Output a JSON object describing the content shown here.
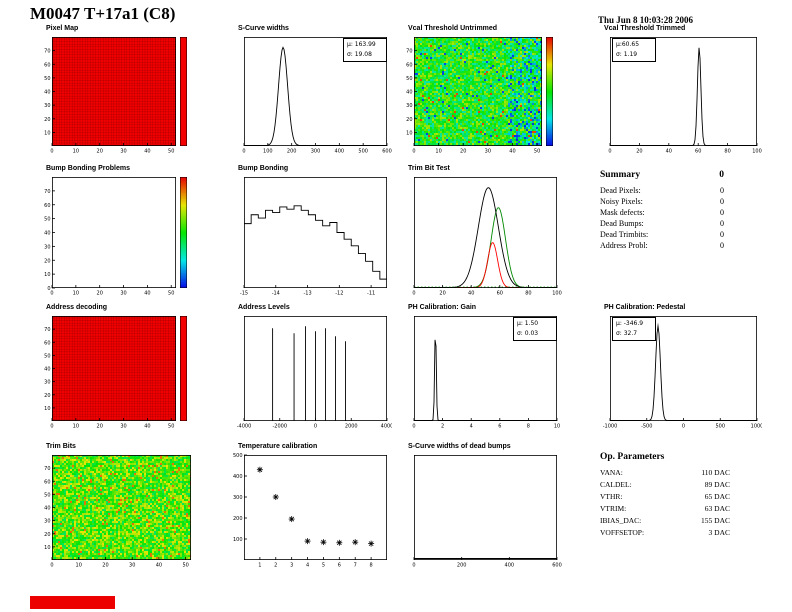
{
  "header": {
    "title": "M0047 T+17a1 (C8)",
    "date": "Thu Jun  8 10:03:28 2006"
  },
  "panels": {
    "pixel_map": "Pixel Map",
    "scurve_widths": "S-Curve widths",
    "vcal_untrimmed": "Vcal Threshold Untrimmed",
    "vcal_trimmed": "Vcal Threshold Trimmed",
    "bump_problems": "Bump Bonding Problems",
    "bump_bonding": "Bump Bonding",
    "trim_bit_test": "Trim Bit Test",
    "address_decoding": "Address decoding",
    "address_levels": "Address Levels",
    "ph_gain": "PH Calibration: Gain",
    "ph_pedestal": "PH Calibration: Pedestal",
    "trim_bits": "Trim Bits",
    "temp_calibration": "Temperature calibration",
    "dead_bumps": "S-Curve widths of dead bumps"
  },
  "stats": {
    "scurve": {
      "mu": "μ: 163.99",
      "sigma": "σ: 19.08"
    },
    "vcal_trimmed": {
      "mu": "μ:60.65",
      "sigma": "σ: 1.19"
    },
    "ph_gain": {
      "mu": "μ: 1.50",
      "sigma": "σ: 0.03"
    },
    "ph_pedestal": {
      "mu": "μ: -346.9",
      "sigma": "σ: 32.7"
    }
  },
  "summary": {
    "title": "Summary",
    "total": "0",
    "rows": [
      {
        "label": "Dead Pixels:",
        "value": "0"
      },
      {
        "label": "Noisy Pixels:",
        "value": "0"
      },
      {
        "label": "Mask defects:",
        "value": "0"
      },
      {
        "label": "Dead Bumps:",
        "value": "0"
      },
      {
        "label": "Dead Trimbits:",
        "value": "0"
      },
      {
        "label": "Address Probl:",
        "value": "0"
      }
    ]
  },
  "op_parameters": {
    "title": "Op. Parameters",
    "rows": [
      {
        "label": "VANA:",
        "value": "110 DAC"
      },
      {
        "label": "CALDEL:",
        "value": "89 DAC"
      },
      {
        "label": "VTHR:",
        "value": "65 DAC"
      },
      {
        "label": "VTRIM:",
        "value": "63 DAC"
      },
      {
        "label": "IBIAS_DAC:",
        "value": "155 DAC"
      },
      {
        "label": "VOFFSETOP:",
        "value": "3 DAC"
      }
    ]
  },
  "colors": {
    "map_red": "#f30000",
    "marker_green": "#00a000",
    "marker_red": "#ff0000",
    "status_red": "#ec0000"
  },
  "chart_data": [
    {
      "id": "pixel_map",
      "type": "heatmap",
      "style": "solid-red",
      "xlim": [
        0,
        52
      ],
      "ylim": [
        0,
        80
      ],
      "xticks": [
        0,
        10,
        20,
        30,
        40,
        50
      ],
      "yticks": [
        10,
        20,
        30,
        40,
        50,
        60,
        70
      ],
      "colorbar": "red"
    },
    {
      "id": "scurve_widths",
      "type": "hist-gauss",
      "mean": 163.99,
      "sigma": 19.08,
      "xlim": [
        0,
        600
      ],
      "xticks": [
        0,
        100,
        200,
        300,
        400,
        500,
        600
      ]
    },
    {
      "id": "vcal_untrimmed",
      "type": "heatmap",
      "style": "noise-rainbow",
      "xlim": [
        0,
        52
      ],
      "ylim": [
        0,
        80
      ],
      "xticks": [
        0,
        10,
        20,
        30,
        40,
        50
      ],
      "yticks": [
        10,
        20,
        30,
        40,
        50,
        60,
        70
      ],
      "colorbar": "rainbow"
    },
    {
      "id": "vcal_trimmed",
      "type": "hist-gauss",
      "mean": 60.65,
      "sigma": 1.19,
      "xlim": [
        0,
        100
      ],
      "xticks": [
        0,
        20,
        40,
        60,
        80,
        100
      ]
    },
    {
      "id": "bump_problems",
      "type": "heatmap",
      "style": "empty",
      "xlim": [
        0,
        52
      ],
      "ylim": [
        0,
        80
      ],
      "xticks": [
        0,
        10,
        20,
        30,
        40,
        50
      ],
      "yticks": [
        0,
        10,
        20,
        30,
        40,
        50,
        60,
        70
      ],
      "colorbar": "rainbow"
    },
    {
      "id": "bump_bonding",
      "type": "hist-steps",
      "xlim": [
        -15,
        -10.5
      ],
      "xticks": [
        -15,
        -14,
        -13,
        -12,
        -11
      ],
      "bins": [
        0.58,
        0.66,
        0.63,
        0.7,
        0.68,
        0.73,
        0.71,
        0.74,
        0.7,
        0.66,
        0.61,
        0.56,
        0.59,
        0.5,
        0.44,
        0.38,
        0.31,
        0.24,
        0.15,
        0.08
      ]
    },
    {
      "id": "trim_bit_test",
      "type": "multi-gauss",
      "xlim": [
        0,
        100
      ],
      "xticks": [
        0,
        20,
        40,
        60,
        80,
        100
      ],
      "baseline": "dashed-green",
      "series": [
        {
          "color": "#008800",
          "mean": 59,
          "sigma": 5,
          "amp": 0.8
        },
        {
          "color": "#ff0000",
          "mean": 55,
          "sigma": 3.5,
          "amp": 0.45
        },
        {
          "color": "#000000",
          "mean": 52,
          "sigma": 7,
          "amp": 1.0
        }
      ]
    },
    {
      "id": "address_decoding",
      "type": "heatmap",
      "style": "solid-red",
      "xlim": [
        0,
        52
      ],
      "ylim": [
        0,
        80
      ],
      "xticks": [
        0,
        10,
        20,
        30,
        40,
        50
      ],
      "yticks": [
        10,
        20,
        30,
        40,
        50,
        60,
        70
      ],
      "colorbar": "red"
    },
    {
      "id": "address_levels",
      "type": "spikes",
      "xlim": [
        -4000,
        4000
      ],
      "xticks": [
        -4000,
        -2000,
        0,
        2000,
        4000
      ],
      "positions": [
        -2400,
        -1200,
        -560,
        0,
        560,
        1120,
        1680
      ],
      "heights": [
        0.93,
        0.88,
        0.95,
        0.9,
        0.93,
        0.85,
        0.8
      ]
    },
    {
      "id": "ph_gain",
      "type": "hist-gauss",
      "mean": 1.5,
      "sigma": 0.03,
      "xlim": [
        0,
        10
      ],
      "xticks": [
        0,
        2,
        4,
        6,
        8,
        10
      ]
    },
    {
      "id": "ph_pedestal",
      "type": "hist-gauss",
      "mean": -346.9,
      "sigma": 32.7,
      "xlim": [
        -1000,
        1000
      ],
      "xticks": [
        -1000,
        -500,
        0,
        500,
        1000
      ]
    },
    {
      "id": "trim_bits",
      "type": "heatmap",
      "style": "noise-warm",
      "xlim": [
        0,
        52
      ],
      "ylim": [
        0,
        80
      ],
      "xticks": [
        0,
        10,
        20,
        30,
        40,
        50
      ],
      "yticks": [
        10,
        20,
        30,
        40,
        50,
        60,
        70
      ]
    },
    {
      "id": "temp_calibration",
      "type": "scatter-star",
      "x": [
        1,
        2,
        3,
        4,
        5,
        6,
        7,
        8
      ],
      "y": [
        430,
        300,
        195,
        90,
        85,
        82,
        85,
        78
      ],
      "xlim": [
        0,
        9
      ],
      "ylim": [
        0,
        500
      ],
      "xticks": [
        1,
        2,
        3,
        4,
        5,
        6,
        7,
        8
      ],
      "yticks": [
        100,
        200,
        300,
        400,
        500
      ]
    },
    {
      "id": "dead_bumps",
      "type": "baseline",
      "xlim": [
        0,
        600
      ],
      "xticks": [
        0,
        200,
        400,
        600
      ]
    }
  ]
}
